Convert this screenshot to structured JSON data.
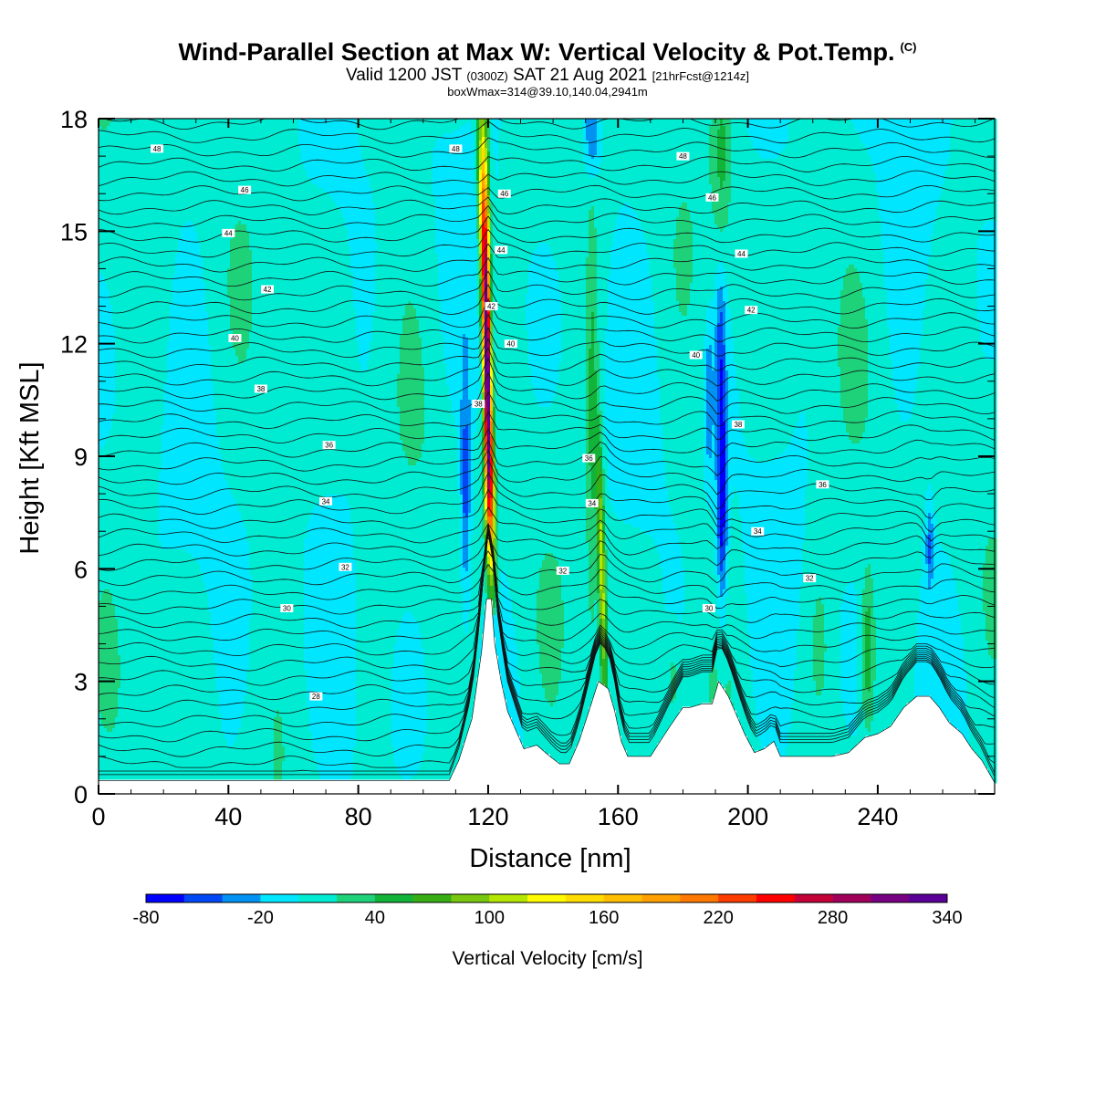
{
  "header": {
    "title": "Wind-Parallel Section at Max W: Vertical Velocity & Pot.Temp.",
    "title_mark": "(C)",
    "valid_prefix": "Valid 1200 JST",
    "valid_utc": "(0300Z)",
    "valid_date": "SAT 21 Aug 2021",
    "forecast_info": "[21hrFcst@1214z]",
    "box_info": "boxWmax=314@39.10,140.04,2941m"
  },
  "chart_data": {
    "type": "contour-section",
    "xlabel": "Distance [nm]",
    "ylabel": "Height [Kft MSL]",
    "xlim": [
      0,
      276
    ],
    "ylim": [
      0,
      18
    ],
    "x_ticks": [
      "0",
      "40",
      "80",
      "120",
      "160",
      "200",
      "240"
    ],
    "y_ticks": [
      "0",
      "3",
      "6",
      "9",
      "12",
      "15",
      "18"
    ],
    "colorbar": {
      "label": "Vertical Velocity [cm/s]",
      "tick_labels": [
        "-80",
        "-20",
        "40",
        "100",
        "160",
        "220",
        "280",
        "340"
      ],
      "levels": [
        -80,
        -60,
        -40,
        -20,
        0,
        20,
        40,
        60,
        80,
        100,
        120,
        140,
        160,
        180,
        200,
        220,
        240,
        260,
        280,
        300,
        320,
        340
      ],
      "colors": [
        "#0000ff",
        "#0048f5",
        "#0092f2",
        "#00e6ff",
        "#00ecd2",
        "#1ed27a",
        "#11b439",
        "#37af14",
        "#79c80f",
        "#b4e600",
        "#fffa00",
        "#ffdc00",
        "#ffbe00",
        "#ffa000",
        "#ff7800",
        "#ff3c00",
        "#ff0000",
        "#c30037",
        "#a0005a",
        "#780082",
        "#5a0096"
      ]
    },
    "theta_contour_labels": [
      {
        "x": 18,
        "y": 17.2,
        "text": "48"
      },
      {
        "x": 110,
        "y": 17.2,
        "text": "48"
      },
      {
        "x": 180,
        "y": 17.0,
        "text": "48"
      },
      {
        "x": 45,
        "y": 16.1,
        "text": "46"
      },
      {
        "x": 125,
        "y": 16.0,
        "text": "46"
      },
      {
        "x": 189,
        "y": 15.9,
        "text": "46"
      },
      {
        "x": 40,
        "y": 14.95,
        "text": "44"
      },
      {
        "x": 124,
        "y": 14.5,
        "text": "44"
      },
      {
        "x": 198,
        "y": 14.4,
        "text": "44"
      },
      {
        "x": 52,
        "y": 13.45,
        "text": "42"
      },
      {
        "x": 121,
        "y": 13.0,
        "text": "42"
      },
      {
        "x": 201,
        "y": 12.9,
        "text": "42"
      },
      {
        "x": 42,
        "y": 12.15,
        "text": "40"
      },
      {
        "x": 127,
        "y": 12.0,
        "text": "40"
      },
      {
        "x": 184,
        "y": 11.7,
        "text": "40"
      },
      {
        "x": 50,
        "y": 10.8,
        "text": "38"
      },
      {
        "x": 117,
        "y": 10.4,
        "text": "38"
      },
      {
        "x": 197,
        "y": 9.85,
        "text": "38"
      },
      {
        "x": 71,
        "y": 9.3,
        "text": "36"
      },
      {
        "x": 151,
        "y": 8.95,
        "text": "36"
      },
      {
        "x": 223,
        "y": 8.25,
        "text": "36"
      },
      {
        "x": 70,
        "y": 7.8,
        "text": "34"
      },
      {
        "x": 152,
        "y": 7.75,
        "text": "34"
      },
      {
        "x": 203,
        "y": 7.0,
        "text": "34"
      },
      {
        "x": 76,
        "y": 6.05,
        "text": "32"
      },
      {
        "x": 143,
        "y": 5.95,
        "text": "32"
      },
      {
        "x": 219,
        "y": 5.75,
        "text": "32"
      },
      {
        "x": 58,
        "y": 4.95,
        "text": "30"
      },
      {
        "x": 188,
        "y": 4.95,
        "text": "30"
      },
      {
        "x": 67,
        "y": 2.6,
        "text": "28"
      }
    ]
  }
}
